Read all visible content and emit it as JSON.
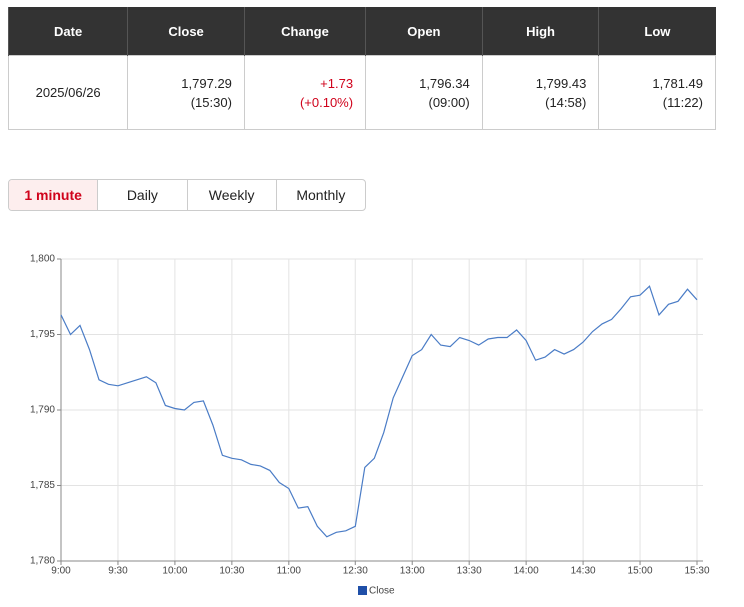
{
  "table": {
    "header": [
      "Date",
      "Close",
      "Change",
      "Open",
      "High",
      "Low"
    ],
    "rows": [
      [
        [
          "2025/06/26"
        ],
        [
          "1,797.29",
          "(15:30)"
        ],
        [
          "+1.73",
          "(+0.10%)"
        ],
        [
          "1,796.34",
          "(09:00)"
        ],
        [
          "1,799.43",
          "(14:58)"
        ],
        [
          "1,781.49",
          "(11:22)"
        ]
      ]
    ]
  },
  "tabs": {
    "items": [
      "1 minute",
      "Daily",
      "Weekly",
      "Monthly"
    ],
    "active": 0
  },
  "chart_data": {
    "type": "line",
    "categories": [
      "9:00",
      "9:05",
      "9:10",
      "9:15",
      "9:20",
      "9:25",
      "9:30",
      "9:35",
      "9:40",
      "9:45",
      "9:50",
      "9:55",
      "10:00",
      "10:05",
      "10:10",
      "10:15",
      "10:20",
      "10:25",
      "10:30",
      "10:35",
      "10:40",
      "10:45",
      "10:50",
      "10:55",
      "11:00",
      "11:05",
      "11:10",
      "11:15",
      "11:20",
      "11:25",
      "11:30",
      "12:30",
      "12:35",
      "12:40",
      "12:45",
      "12:50",
      "12:55",
      "13:00",
      "13:05",
      "13:10",
      "13:15",
      "13:20",
      "13:25",
      "13:30",
      "13:35",
      "13:40",
      "13:45",
      "13:50",
      "13:55",
      "14:00",
      "14:05",
      "14:10",
      "14:15",
      "14:20",
      "14:25",
      "14:30",
      "14:35",
      "14:40",
      "14:45",
      "14:50",
      "14:55",
      "15:00",
      "15:05",
      "15:10",
      "15:15",
      "15:20",
      "15:25",
      "15:30"
    ],
    "series": [
      {
        "name": "Close",
        "color": "#4a7cc6",
        "values": [
          1796.3,
          1795.0,
          1795.6,
          1794.0,
          1792.0,
          1791.7,
          1791.6,
          1791.8,
          1792.0,
          1792.2,
          1791.8,
          1790.3,
          1790.1,
          1790.0,
          1790.5,
          1790.6,
          1789.0,
          1787.0,
          1786.8,
          1786.7,
          1786.4,
          1786.3,
          1786.0,
          1785.2,
          1784.8,
          1783.5,
          1783.6,
          1782.3,
          1781.6,
          1781.9,
          1782.0,
          1782.3,
          1786.2,
          1786.8,
          1788.5,
          1790.8,
          1792.2,
          1793.6,
          1794.0,
          1795.0,
          1794.3,
          1794.2,
          1794.8,
          1794.6,
          1794.3,
          1794.7,
          1794.8,
          1794.8,
          1795.3,
          1794.6,
          1793.3,
          1793.5,
          1794.0,
          1793.7,
          1794.0,
          1794.5,
          1795.2,
          1795.7,
          1796.0,
          1796.7,
          1797.5,
          1797.6,
          1798.2,
          1796.3,
          1797.0,
          1797.2,
          1798.0,
          1797.3
        ]
      }
    ],
    "xticks": [
      "9:00",
      "9:30",
      "10:00",
      "10:30",
      "11:00",
      "12:30",
      "13:00",
      "13:30",
      "14:00",
      "14:30",
      "15:00",
      "15:30"
    ],
    "ylim": [
      1780,
      1800
    ],
    "yticks": [
      {
        "value": 1780,
        "label": "1,780"
      },
      {
        "value": 1785,
        "label": "1,785"
      },
      {
        "value": 1790,
        "label": "1,790"
      },
      {
        "value": 1795,
        "label": "1,795"
      },
      {
        "value": 1800,
        "label": "1,800"
      }
    ],
    "grid": true,
    "legend": "bottom"
  }
}
